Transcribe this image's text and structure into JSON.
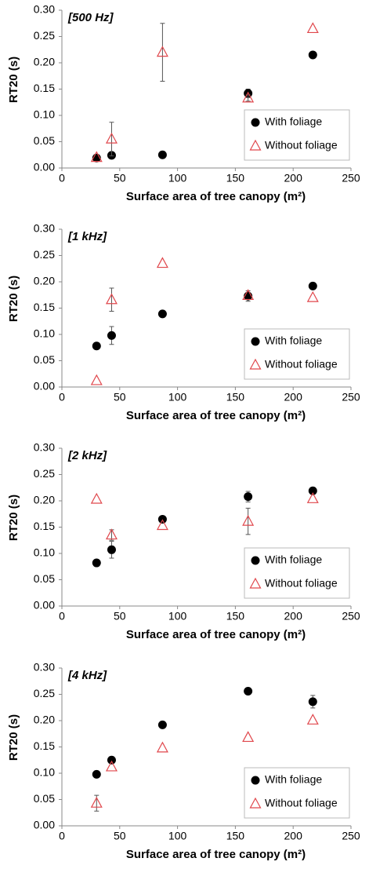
{
  "chart_data": [
    {
      "type": "scatter",
      "annotation": "[500 Hz]",
      "xlabel": "Surface area of tree canopy (m²)",
      "ylabel": "RT20 (s)",
      "x": [
        30,
        43,
        87,
        161,
        217
      ],
      "xlim": [
        0,
        250
      ],
      "xticks": [
        0,
        50,
        100,
        150,
        200,
        250
      ],
      "ylim": [
        0,
        0.3
      ],
      "yticks": [
        {
          "value": 0,
          "label": "0.00"
        },
        {
          "value": 0.05,
          "label": "0.05"
        },
        {
          "value": 0.1,
          "label": "0.10"
        },
        {
          "value": 0.15,
          "label": "0.15"
        },
        {
          "value": 0.2,
          "label": "0.20"
        },
        {
          "value": 0.25,
          "label": "0.25"
        },
        {
          "value": 0.3,
          "label": "0.30"
        }
      ],
      "legend": "lower right",
      "series": [
        {
          "name": "With foliage",
          "color": "#000000",
          "marker": "circle",
          "values": [
            0.019,
            0.024,
            0.025,
            0.142,
            0.215
          ],
          "errors": [
            null,
            null,
            null,
            0.008,
            null
          ]
        },
        {
          "name": "Without foliage",
          "color": "#e0474c",
          "marker": "triangle",
          "values": [
            0.02,
            0.055,
            0.22,
            0.133,
            0.265
          ],
          "errors": [
            null,
            0.032,
            0.055,
            0.006,
            null
          ]
        }
      ]
    },
    {
      "type": "scatter",
      "annotation": "[1 kHz]",
      "xlabel": "Surface area of tree canopy (m²)",
      "ylabel": "RT20 (s)",
      "x": [
        30,
        43,
        87,
        161,
        217
      ],
      "xlim": [
        0,
        250
      ],
      "xticks": [
        0,
        50,
        100,
        150,
        200,
        250
      ],
      "ylim": [
        0,
        0.3
      ],
      "yticks": [
        {
          "value": 0,
          "label": "0.00"
        },
        {
          "value": 0.05,
          "label": "0.05"
        },
        {
          "value": 0.1,
          "label": "0.10"
        },
        {
          "value": 0.15,
          "label": "0.15"
        },
        {
          "value": 0.2,
          "label": "0.20"
        },
        {
          "value": 0.25,
          "label": "0.25"
        },
        {
          "value": 0.3,
          "label": "0.30"
        }
      ],
      "legend": "lower right",
      "series": [
        {
          "name": "With foliage",
          "color": "#000000",
          "marker": "circle",
          "values": [
            0.078,
            0.098,
            0.139,
            0.173,
            0.192
          ],
          "errors": [
            null,
            0.017,
            null,
            0.01,
            null
          ]
        },
        {
          "name": "Without foliage",
          "color": "#e0474c",
          "marker": "triangle",
          "values": [
            0.012,
            0.166,
            0.235,
            0.174,
            0.17
          ],
          "errors": [
            null,
            0.022,
            null,
            null,
            null
          ]
        }
      ]
    },
    {
      "type": "scatter",
      "annotation": "[2 kHz]",
      "xlabel": "Surface area of tree canopy (m²)",
      "ylabel": "RT20 (s)",
      "x": [
        30,
        43,
        87,
        161,
        217
      ],
      "xlim": [
        0,
        250
      ],
      "xticks": [
        0,
        50,
        100,
        150,
        200,
        250
      ],
      "ylim": [
        0,
        0.3
      ],
      "yticks": [
        {
          "value": 0,
          "label": "0.00"
        },
        {
          "value": 0.05,
          "label": "0.05"
        },
        {
          "value": 0.1,
          "label": "0.10"
        },
        {
          "value": 0.15,
          "label": "0.15"
        },
        {
          "value": 0.2,
          "label": "0.20"
        },
        {
          "value": 0.25,
          "label": "0.25"
        },
        {
          "value": 0.3,
          "label": "0.30"
        }
      ],
      "legend": "lower right",
      "series": [
        {
          "name": "With foliage",
          "color": "#000000",
          "marker": "circle",
          "values": [
            0.082,
            0.107,
            0.165,
            0.208,
            0.219
          ],
          "errors": [
            null,
            0.016,
            null,
            0.01,
            null
          ]
        },
        {
          "name": "Without foliage",
          "color": "#e0474c",
          "marker": "triangle",
          "values": [
            0.203,
            0.135,
            0.153,
            0.161,
            0.204
          ],
          "errors": [
            null,
            0.01,
            null,
            0.025,
            null
          ]
        }
      ]
    },
    {
      "type": "scatter",
      "annotation": "[4 kHz]",
      "xlabel": "Surface area of tree canopy (m²)",
      "ylabel": "RT20 (s)",
      "x": [
        30,
        43,
        87,
        161,
        217
      ],
      "xlim": [
        0,
        250
      ],
      "xticks": [
        0,
        50,
        100,
        150,
        200,
        250
      ],
      "ylim": [
        0,
        0.3
      ],
      "yticks": [
        {
          "value": 0,
          "label": "0.00"
        },
        {
          "value": 0.05,
          "label": "0.05"
        },
        {
          "value": 0.1,
          "label": "0.10"
        },
        {
          "value": 0.15,
          "label": "0.15"
        },
        {
          "value": 0.2,
          "label": "0.20"
        },
        {
          "value": 0.25,
          "label": "0.25"
        },
        {
          "value": 0.3,
          "label": "0.30"
        }
      ],
      "legend": "lower right",
      "series": [
        {
          "name": "With foliage",
          "color": "#000000",
          "marker": "circle",
          "values": [
            0.098,
            0.125,
            0.192,
            0.256,
            0.236
          ],
          "errors": [
            null,
            null,
            null,
            null,
            0.012
          ]
        },
        {
          "name": "Without foliage",
          "color": "#e0474c",
          "marker": "triangle",
          "values": [
            0.043,
            0.112,
            0.148,
            0.168,
            0.201
          ],
          "errors": [
            0.015,
            null,
            null,
            null,
            null
          ]
        }
      ]
    }
  ]
}
